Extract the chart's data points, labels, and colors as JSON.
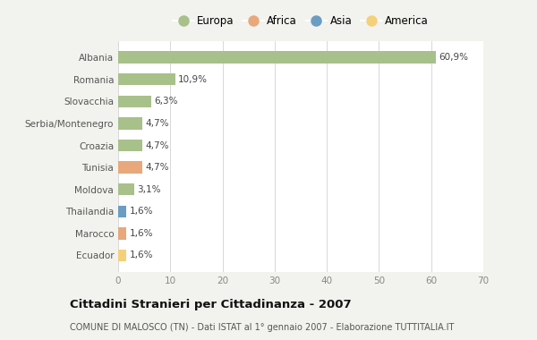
{
  "countries": [
    "Albania",
    "Romania",
    "Slovacchia",
    "Serbia/Montenegro",
    "Croazia",
    "Tunisia",
    "Moldova",
    "Thailandia",
    "Marocco",
    "Ecuador"
  ],
  "values": [
    60.9,
    10.9,
    6.3,
    4.7,
    4.7,
    4.7,
    3.1,
    1.6,
    1.6,
    1.6
  ],
  "labels": [
    "60,9%",
    "10,9%",
    "6,3%",
    "4,7%",
    "4,7%",
    "4,7%",
    "3,1%",
    "1,6%",
    "1,6%",
    "1,6%"
  ],
  "continents": [
    "Europa",
    "Europa",
    "Europa",
    "Europa",
    "Europa",
    "Africa",
    "Europa",
    "Asia",
    "Africa",
    "America"
  ],
  "colors": {
    "Europa": "#a8c08a",
    "Africa": "#e8a87c",
    "Asia": "#6b9dc2",
    "America": "#f5d07a"
  },
  "legend_order": [
    "Europa",
    "Africa",
    "Asia",
    "America"
  ],
  "xlim": [
    0,
    70
  ],
  "xticks": [
    0,
    10,
    20,
    30,
    40,
    50,
    60,
    70
  ],
  "title": "Cittadini Stranieri per Cittadinanza - 2007",
  "subtitle": "COMUNE DI MALOSCO (TN) - Dati ISTAT al 1° gennaio 2007 - Elaborazione TUTTITALIA.IT",
  "background_color": "#f2f2ee",
  "plot_bg_color": "#ffffff",
  "grid_color": "#d8d8d8",
  "bar_height": 0.55
}
